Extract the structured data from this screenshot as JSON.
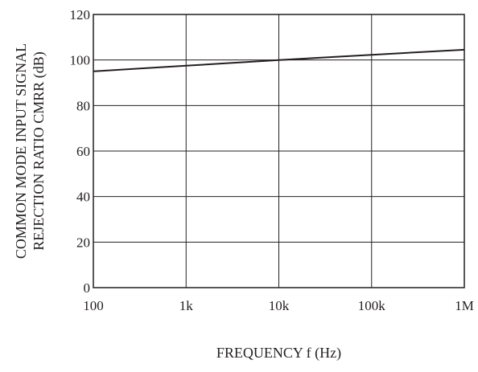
{
  "chart_data": {
    "type": "line",
    "title": "",
    "xlabel": "FREQUENCY f (Hz)",
    "ylabel_lines": [
      "COMMON MODE INPUT SIGNAL",
      "REJECTION RATIO CMRR (dB)"
    ],
    "x_scale": "log",
    "xlim": [
      100,
      1000000
    ],
    "ylim": [
      0,
      120
    ],
    "grid": true,
    "x_ticks": [
      {
        "value": 100,
        "label": "100"
      },
      {
        "value": 1000,
        "label": "1k"
      },
      {
        "value": 10000,
        "label": "10k"
      },
      {
        "value": 100000,
        "label": "100k"
      },
      {
        "value": 1000000,
        "label": "1M"
      }
    ],
    "y_ticks": [
      {
        "value": 0,
        "label": "0"
      },
      {
        "value": 20,
        "label": "20"
      },
      {
        "value": 40,
        "label": "40"
      },
      {
        "value": 60,
        "label": "60"
      },
      {
        "value": 80,
        "label": "80"
      },
      {
        "value": 100,
        "label": "100"
      },
      {
        "value": 120,
        "label": "120"
      }
    ],
    "series": [
      {
        "x": [
          100,
          1000,
          10000,
          100000,
          1000000
        ],
        "y": [
          95,
          97.5,
          100,
          102.3,
          104.5
        ]
      }
    ],
    "colors": {
      "line": "#231f20",
      "grid": "#231f20",
      "frame": "#231f20"
    }
  }
}
